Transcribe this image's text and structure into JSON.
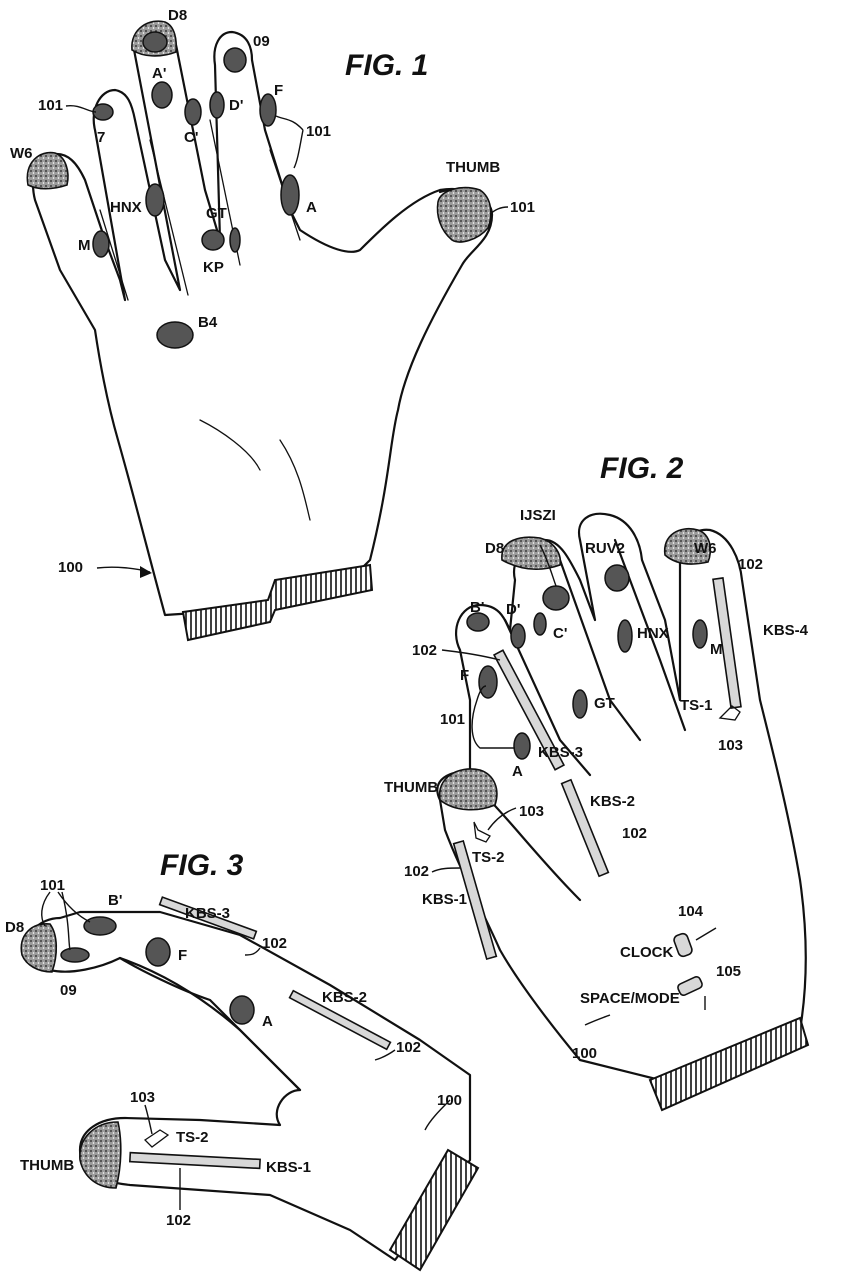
{
  "figures": {
    "fig1": {
      "title": "FIG. 1",
      "labels": {
        "d8": "D8",
        "o9": "09",
        "a_prime": "A'",
        "c_prime": "C'",
        "d_prime": "D'",
        "f": "F",
        "ref_101_left": "101",
        "ref_101_right": "101",
        "seven": "7",
        "w6": "W6",
        "hnx": "HNX",
        "gt": "GT",
        "kp": "KP",
        "m": "M",
        "a": "A",
        "thumb": "THUMB",
        "ref_101_thumb": "101",
        "b4": "B4",
        "ref_100": "100"
      }
    },
    "fig2": {
      "title": "FIG. 2",
      "labels": {
        "ijszi": "IJSZI",
        "d8": "D8",
        "ruv2": "RUV2",
        "w6": "W6",
        "ref_102_top": "102",
        "b_prime": "B'",
        "d_prime": "D'",
        "c_prime": "C'",
        "hnx": "HNX",
        "kbs4": "KBS-4",
        "m": "M",
        "ref_102_left": "102",
        "gt": "GT",
        "ts1": "TS-1",
        "f": "F",
        "ref_101": "101",
        "kbs3": "KBS-3",
        "ref_103_right": "103",
        "a": "A",
        "thumb": "THUMB",
        "kbs2": "KBS-2",
        "ref_103": "103",
        "ref_102_mid": "102",
        "ts2": "TS-2",
        "ref_102_low": "102",
        "kbs1": "KBS-1",
        "ref_104": "104",
        "clock": "CLOCK",
        "ref_105": "105",
        "space_mode": "SPACE/MODE",
        "ref_100": "100"
      }
    },
    "fig3": {
      "title": "FIG. 3",
      "labels": {
        "ref_101": "101",
        "b_prime": "B'",
        "kbs3": "KBS-3",
        "d8": "D8",
        "ref_102_a": "102",
        "f": "F",
        "o9": "09",
        "kbs2": "KBS-2",
        "a": "A",
        "ref_102_b": "102",
        "ref_103": "103",
        "ref_100": "100",
        "ts2": "TS-2",
        "thumb": "THUMB",
        "kbs1": "KBS-1",
        "ref_102_c": "102"
      }
    }
  }
}
